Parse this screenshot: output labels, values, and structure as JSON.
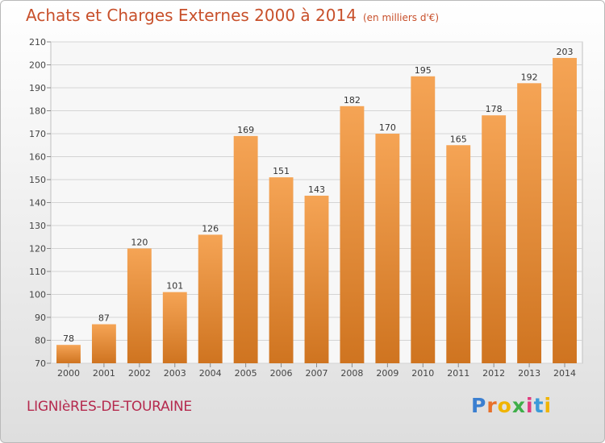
{
  "header": {
    "title": "Achats et Charges Externes 2000 à 2014",
    "unit": "(en milliers d'€)"
  },
  "location": "LIGNIèRES-DE-TOURAINE",
  "logo": {
    "text": "Proxiti"
  },
  "colors": {
    "title": "#c8502b",
    "location": "#b52a4e",
    "bar_light": "#f5a455",
    "bar_dark": "#cf7420"
  },
  "chart_data": {
    "type": "bar",
    "title": "Achats et Charges Externes 2000 à 2014",
    "subtitle": "(en milliers d'€)",
    "xlabel": "",
    "ylabel": "",
    "categories": [
      "2000",
      "2001",
      "2002",
      "2003",
      "2004",
      "2005",
      "2006",
      "2007",
      "2008",
      "2009",
      "2010",
      "2011",
      "2012",
      "2013",
      "2014"
    ],
    "values": [
      78,
      87,
      120,
      101,
      126,
      169,
      151,
      143,
      182,
      170,
      195,
      165,
      178,
      192,
      203
    ],
    "ylim": [
      70,
      210
    ],
    "yticks": [
      70,
      80,
      90,
      100,
      110,
      120,
      130,
      140,
      150,
      160,
      170,
      180,
      190,
      200,
      210
    ],
    "grid": true,
    "legend": "none"
  }
}
